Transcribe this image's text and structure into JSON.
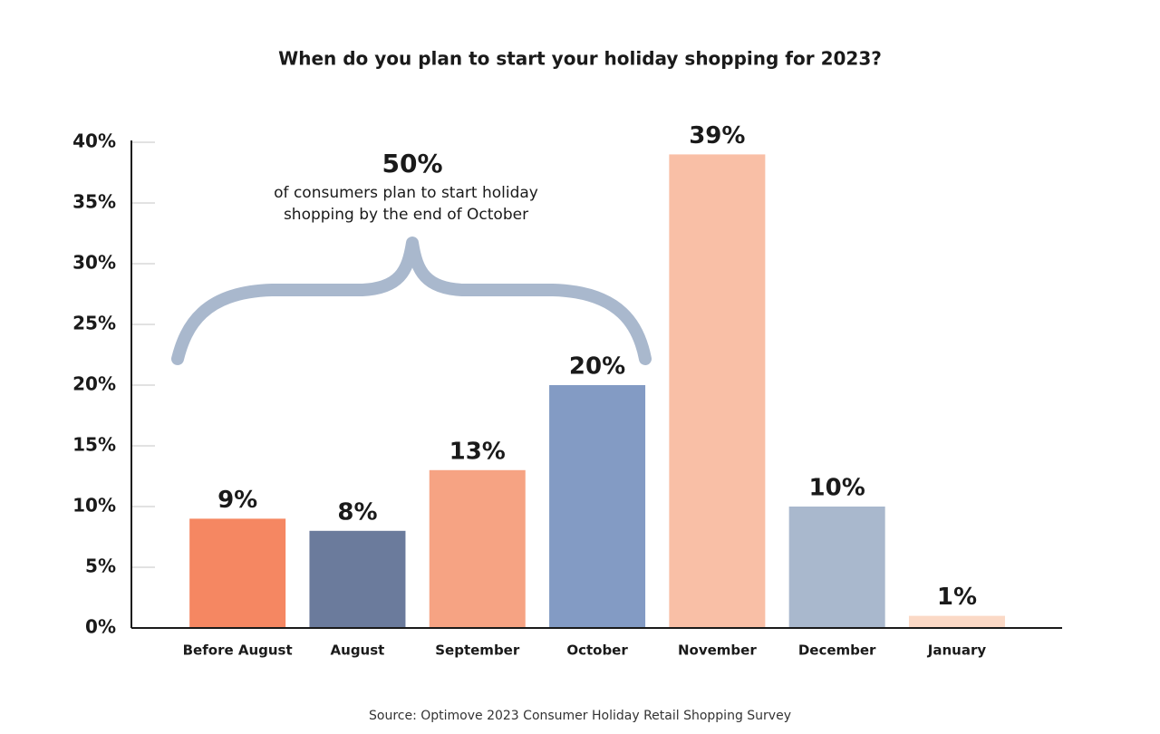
{
  "chart_data": {
    "type": "bar",
    "title": "When do you plan to start your holiday shopping for 2023?",
    "categories": [
      "Before August",
      "August",
      "September",
      "October",
      "November",
      "December",
      "January"
    ],
    "values": [
      9,
      8,
      13,
      20,
      39,
      10,
      1
    ],
    "value_labels": [
      "9%",
      "8%",
      "13%",
      "20%",
      "39%",
      "10%",
      "1%"
    ],
    "colors": [
      "#f58762",
      "#6b7b9c",
      "#f6a383",
      "#839bc4",
      "#f9bfa6",
      "#a9b8cd",
      "#fbd9c6"
    ],
    "ylim": [
      0,
      40
    ],
    "yticks": [
      {
        "value": 0,
        "label": "0%"
      },
      {
        "value": 5,
        "label": "5%"
      },
      {
        "value": 10,
        "label": "10%"
      },
      {
        "value": 15,
        "label": "15%"
      },
      {
        "value": 20,
        "label": "20%"
      },
      {
        "value": 25,
        "label": "25%"
      },
      {
        "value": 30,
        "label": "30%"
      },
      {
        "value": 35,
        "label": "35%"
      },
      {
        "value": 40,
        "label": "40%"
      }
    ],
    "annotation": {
      "headline": "50%",
      "lines": [
        "of consumers plan to start holiday",
        "shopping by the end of October"
      ]
    },
    "source": "Source: Optimove 2023 Consumer Holiday Retail Shopping Survey"
  }
}
